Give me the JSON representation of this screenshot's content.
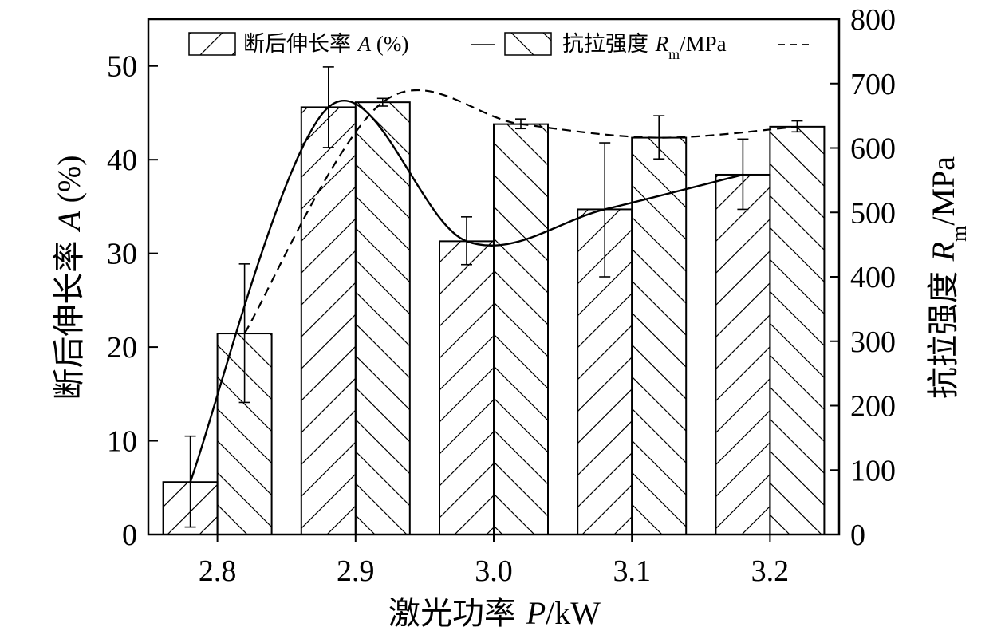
{
  "chart_data": {
    "type": "bar",
    "categories": [
      "2.8",
      "2.9",
      "3.0",
      "3.1",
      "3.2"
    ],
    "xlabel": {
      "prefix": "激光功率 ",
      "var": "P",
      "suffix": "/kW"
    },
    "ylabel_left": {
      "prefix": "断后伸长率 ",
      "var": "A",
      "suffix": " (%)"
    },
    "ylabel_right": {
      "prefix": "抗拉强度 ",
      "var": "R",
      "sub": "m",
      "suffix": "/MPa"
    },
    "ylim_left": [
      0,
      55
    ],
    "ylim_right": [
      0,
      800
    ],
    "yticks_left": [
      0,
      10,
      20,
      30,
      40,
      50
    ],
    "yticks_right": [
      0,
      100,
      200,
      300,
      400,
      500,
      600,
      700,
      800
    ],
    "grid": false,
    "legend_position": "top",
    "series": [
      {
        "name": "断后伸长率 A (%)",
        "axis": "left",
        "hatch": "forward",
        "line": "solid",
        "values": [
          5.6,
          45.6,
          31.3,
          34.7,
          38.4
        ],
        "error_low": [
          0.8,
          41.3,
          28.8,
          27.5,
          34.7
        ],
        "error_high": [
          10.5,
          49.9,
          33.9,
          41.8,
          42.2
        ]
      },
      {
        "name": "抗拉强度 Rm/MPa",
        "axis": "right",
        "hatch": "backward",
        "line": "dashed",
        "values": [
          312,
          671,
          637,
          616,
          633
        ],
        "error_low": [
          205,
          665,
          630,
          583,
          625
        ],
        "error_high": [
          420,
          677,
          645,
          650,
          642
        ]
      }
    ],
    "legend": [
      {
        "prefix": "断后伸长率 ",
        "var": "A",
        "suffix": " (%)"
      },
      {
        "prefix": "抗拉强度 ",
        "var": "R",
        "sub": "m",
        "suffix": "/MPa"
      }
    ],
    "colors": {
      "line": "#000000",
      "background": "#ffffff"
    }
  }
}
